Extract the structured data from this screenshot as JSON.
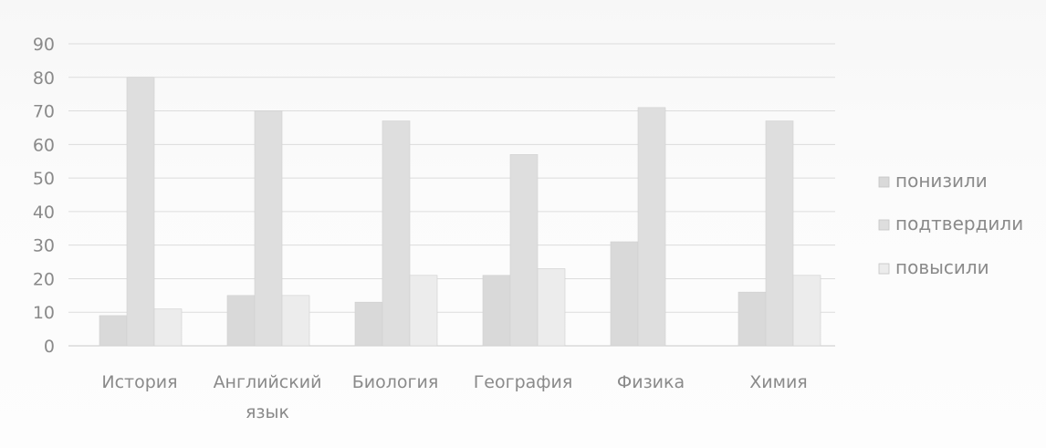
{
  "chart_data": {
    "type": "bar",
    "title": "",
    "xlabel": "",
    "ylabel": "",
    "categories": [
      "История",
      "Английский язык",
      "Биология",
      "География",
      "Физика",
      "Химия"
    ],
    "category_lines": [
      [
        "История"
      ],
      [
        "Английский",
        "язык"
      ],
      [
        "Биология"
      ],
      [
        "География"
      ],
      [
        "Физика"
      ],
      [
        "Химия"
      ]
    ],
    "series": [
      {
        "name": "понизили",
        "values": [
          9,
          15,
          13,
          21,
          31,
          16
        ],
        "color": "#d9d9d9"
      },
      {
        "name": "подтвердили",
        "values": [
          80,
          70,
          67,
          57,
          71,
          67
        ],
        "color": "#dedede"
      },
      {
        "name": "повысили",
        "values": [
          11,
          15,
          21,
          23,
          0,
          21
        ],
        "color": "#ececec"
      }
    ],
    "ylim": [
      0,
      90
    ],
    "yticks": [
      0,
      10,
      20,
      30,
      40,
      50,
      60,
      70,
      80,
      90
    ],
    "grid": true,
    "legend_position": "right"
  }
}
